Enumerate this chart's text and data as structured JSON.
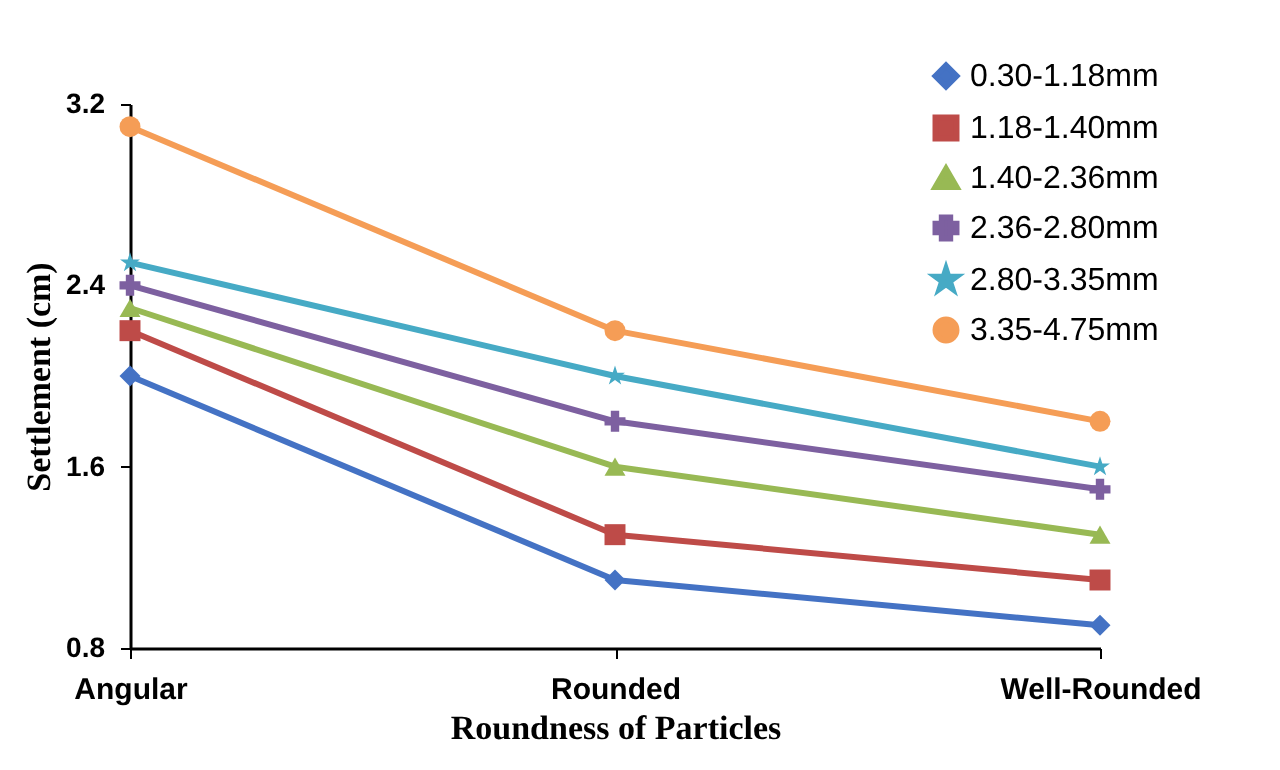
{
  "chart_data": {
    "type": "line",
    "xlabel": "Roundness of Particles",
    "ylabel": "Settlement (cm)",
    "categories": [
      "Angular",
      "Rounded",
      "Well-Rounded"
    ],
    "ylim": [
      0.8,
      3.2
    ],
    "yticks": [
      0.8,
      1.6,
      2.4,
      3.2
    ],
    "legend": "top right",
    "line_style": "solid",
    "series": [
      {
        "name": "0.30-1.18mm",
        "color": "#4472c4",
        "marker": "diamond",
        "values": [
          2.0,
          1.1,
          0.9
        ]
      },
      {
        "name": "1.18-1.40mm",
        "color": "#be4b48",
        "marker": "square",
        "values": [
          2.2,
          1.3,
          1.1
        ]
      },
      {
        "name": "1.40-2.36mm",
        "color": "#98b954",
        "marker": "triangle",
        "values": [
          2.3,
          1.6,
          1.3
        ]
      },
      {
        "name": "2.36-2.80mm",
        "color": "#7d60a0",
        "marker": "cross",
        "values": [
          2.4,
          1.8,
          1.5
        ]
      },
      {
        "name": "2.80-3.35mm",
        "color": "#46aac5",
        "marker": "star",
        "values": [
          2.5,
          2.0,
          1.6
        ]
      },
      {
        "name": "3.35-4.75mm",
        "color": "#f59d56",
        "marker": "circle",
        "values": [
          3.1,
          2.2,
          1.8
        ]
      }
    ]
  }
}
